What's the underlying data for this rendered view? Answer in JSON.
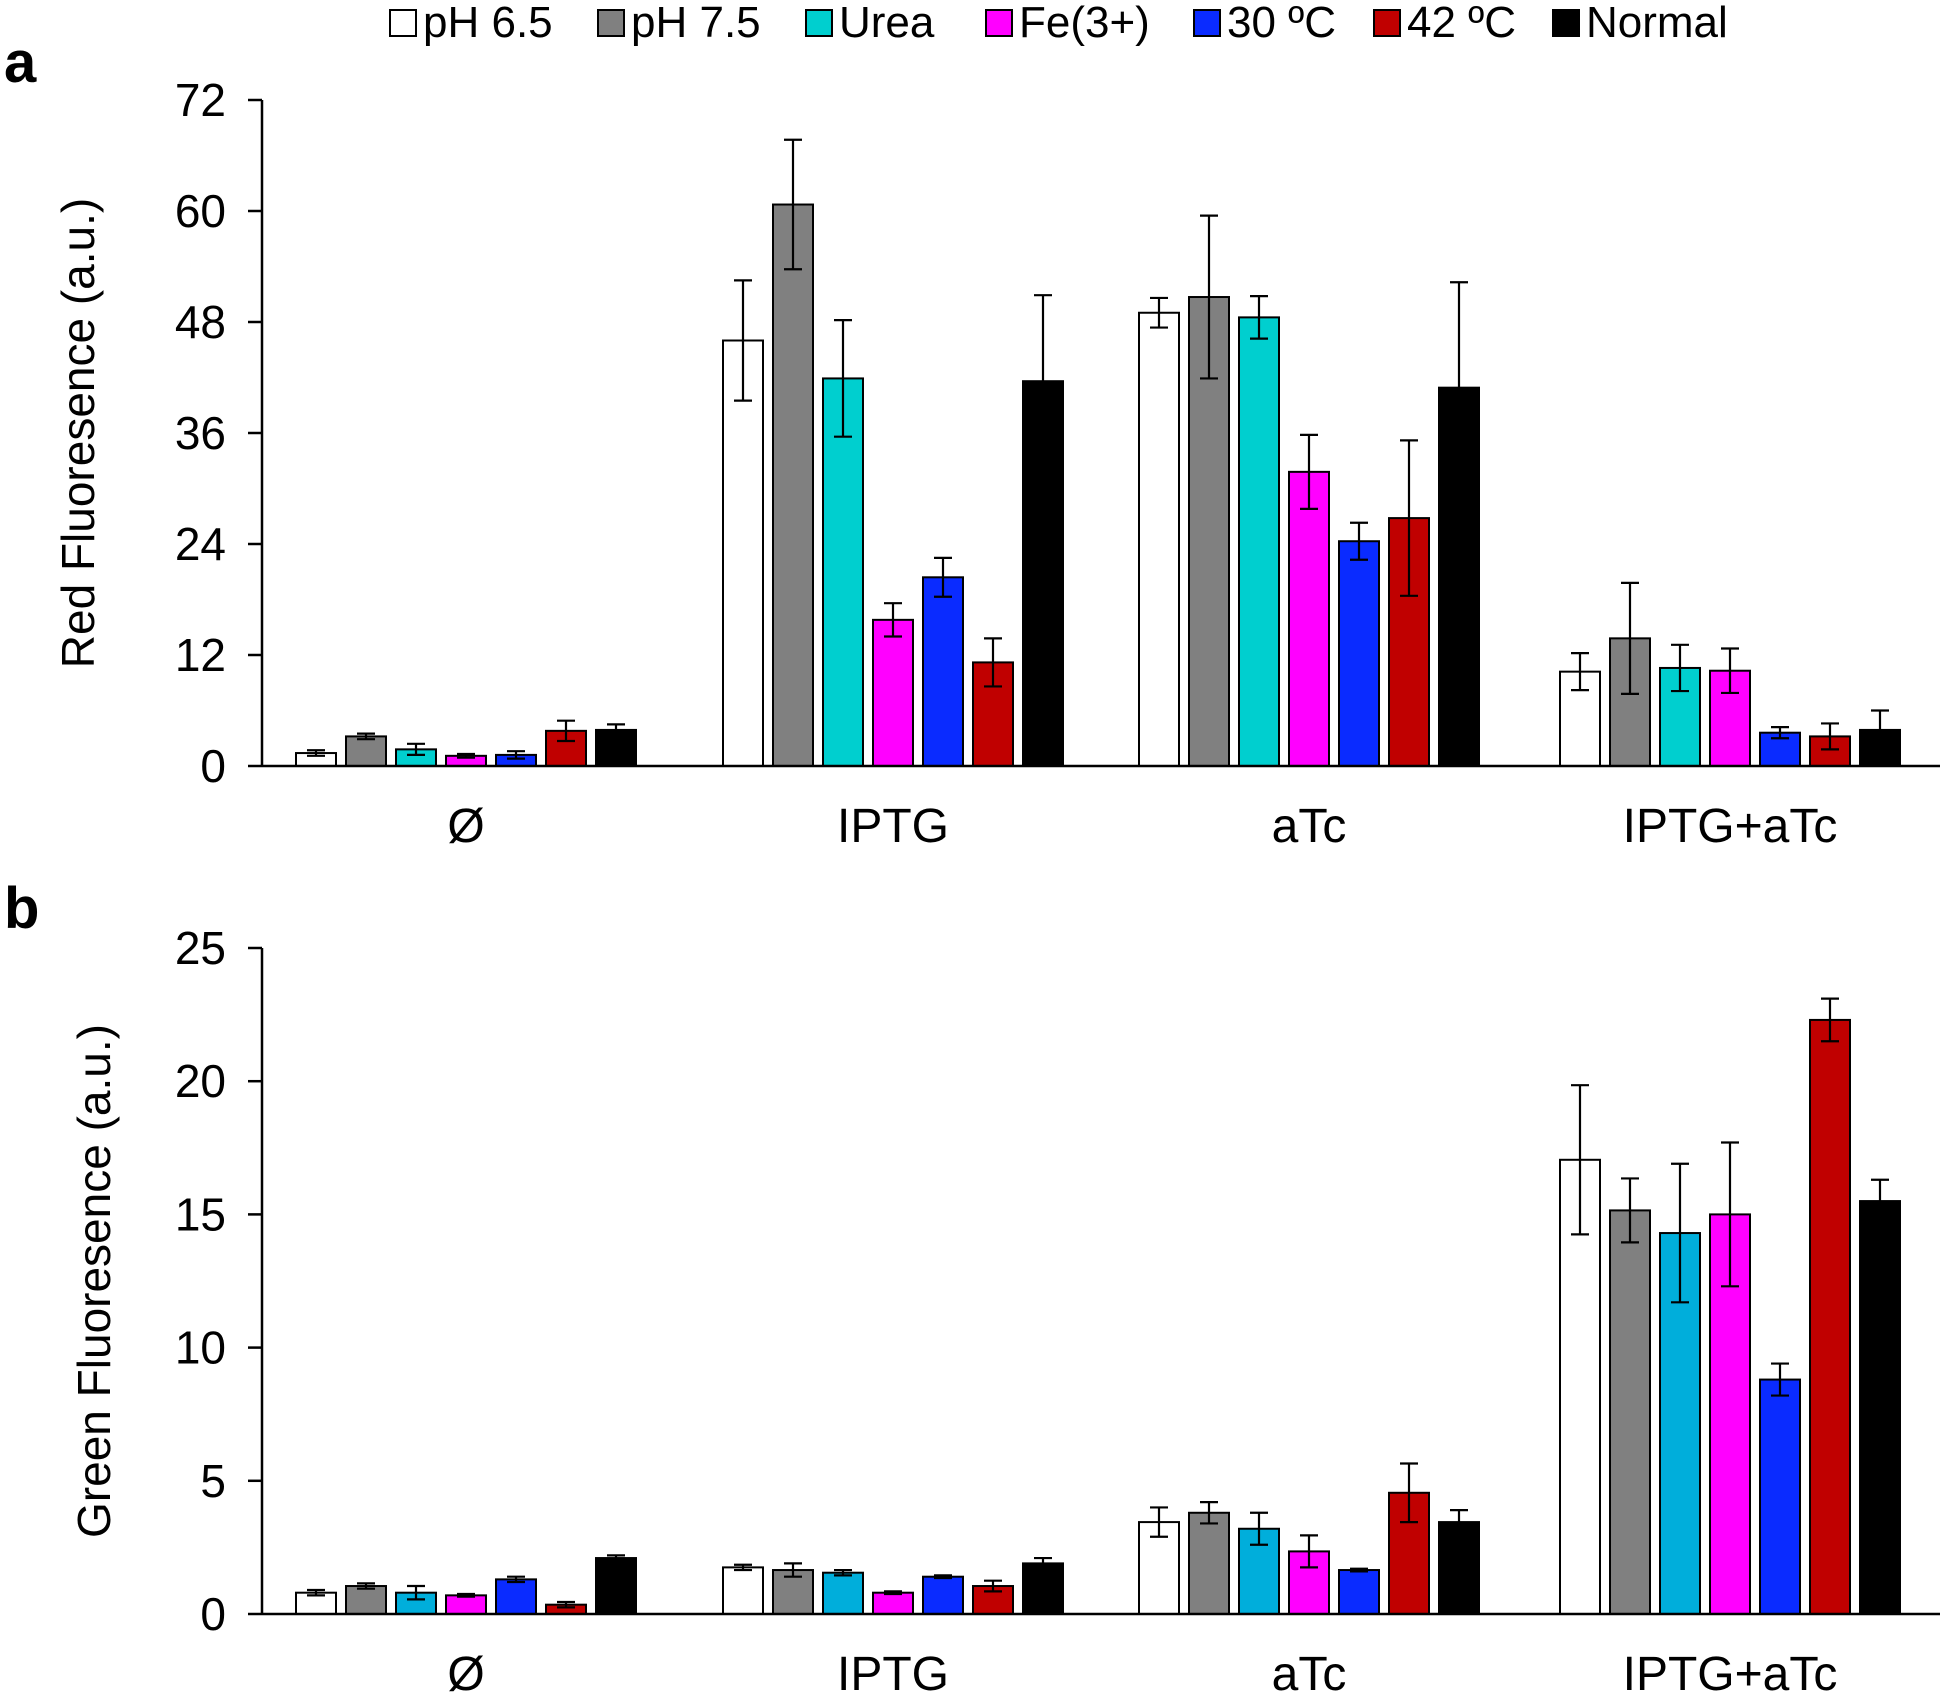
{
  "legend": [
    {
      "label": "pH 6.5",
      "color": "#ffffff"
    },
    {
      "label": "pH 7.5",
      "color": "#808080"
    },
    {
      "label": "Urea",
      "color": "#00cfcf"
    },
    {
      "label": "Fe(3+)",
      "color": "#ff00ff"
    },
    {
      "label": "30 ºC",
      "color": "#0a2bff"
    },
    {
      "label": "42 ºC",
      "color": "#c00000"
    },
    {
      "label": "Normal",
      "color": "#000000"
    }
  ],
  "chart_data": [
    {
      "panel": "a",
      "type": "bar",
      "ylabel": "Red Fluoresence (a.u.)",
      "ylim": [
        0,
        72
      ],
      "yticks": [
        0,
        12,
        24,
        36,
        48,
        60,
        72
      ],
      "categories": [
        "Ø",
        "IPTG",
        "aTc",
        "IPTG+aTc"
      ],
      "series": [
        {
          "name": "pH 6.5",
          "color": "#ffffff",
          "values": [
            1.4,
            46.0,
            49.0,
            10.2
          ],
          "errors": [
            0.3,
            6.5,
            1.6,
            2.0
          ]
        },
        {
          "name": "pH 7.5",
          "color": "#808080",
          "values": [
            3.2,
            60.7,
            50.7,
            13.8
          ],
          "errors": [
            0.3,
            7.0,
            8.8,
            6.0
          ]
        },
        {
          "name": "Urea",
          "color": "#00cfcf",
          "values": [
            1.8,
            41.9,
            48.5,
            10.6
          ],
          "errors": [
            0.6,
            6.3,
            2.3,
            2.5
          ]
        },
        {
          "name": "Fe(3+)",
          "color": "#ff00ff",
          "values": [
            1.1,
            15.8,
            31.8,
            10.3
          ],
          "errors": [
            0.2,
            1.8,
            4.0,
            2.4
          ]
        },
        {
          "name": "30 ºC",
          "color": "#0a2bff",
          "values": [
            1.2,
            20.4,
            24.3,
            3.6
          ],
          "errors": [
            0.4,
            2.1,
            2.0,
            0.6
          ]
        },
        {
          "name": "42 ºC",
          "color": "#c00000",
          "values": [
            3.8,
            11.2,
            26.8,
            3.2
          ],
          "errors": [
            1.1,
            2.6,
            8.4,
            1.4
          ]
        },
        {
          "name": "Normal",
          "color": "#000000",
          "values": [
            3.9,
            41.6,
            40.9,
            3.9
          ],
          "errors": [
            0.6,
            9.3,
            11.4,
            2.1
          ]
        }
      ]
    },
    {
      "panel": "b",
      "type": "bar",
      "ylabel": "Green Fluoresence (a.u.)",
      "ylim": [
        0,
        25
      ],
      "yticks": [
        0,
        5,
        10,
        15,
        20,
        25
      ],
      "categories": [
        "Ø",
        "IPTG",
        "aTc",
        "IPTG+aTc"
      ],
      "series": [
        {
          "name": "pH 6.5",
          "color": "#ffffff",
          "values": [
            0.8,
            1.75,
            3.45,
            17.05
          ],
          "errors": [
            0.1,
            0.1,
            0.55,
            2.8
          ]
        },
        {
          "name": "pH 7.5",
          "color": "#808080",
          "values": [
            1.05,
            1.65,
            3.8,
            15.15
          ],
          "errors": [
            0.1,
            0.25,
            0.4,
            1.2
          ]
        },
        {
          "name": "Urea",
          "color": "#00aedb",
          "values": [
            0.8,
            1.55,
            3.2,
            14.3
          ],
          "errors": [
            0.25,
            0.1,
            0.6,
            2.6
          ]
        },
        {
          "name": "Fe(3+)",
          "color": "#ff00ff",
          "values": [
            0.7,
            0.8,
            2.35,
            15.0
          ],
          "errors": [
            0.05,
            0.05,
            0.6,
            2.7
          ]
        },
        {
          "name": "30 ºC",
          "color": "#0a2bff",
          "values": [
            1.3,
            1.4,
            1.65,
            8.8
          ],
          "errors": [
            0.1,
            0.05,
            0.05,
            0.6
          ]
        },
        {
          "name": "42 ºC",
          "color": "#c00000",
          "values": [
            0.35,
            1.05,
            4.55,
            22.3
          ],
          "errors": [
            0.1,
            0.2,
            1.1,
            0.8
          ]
        },
        {
          "name": "Normal",
          "color": "#000000",
          "values": [
            2.1,
            1.9,
            3.45,
            15.5
          ],
          "errors": [
            0.1,
            0.2,
            0.45,
            0.8
          ]
        }
      ]
    }
  ]
}
